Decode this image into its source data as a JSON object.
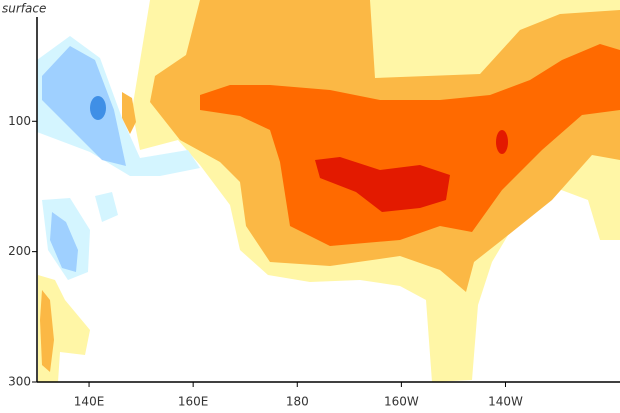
{
  "chart_data": {
    "type": "contour",
    "y_top_label": "surface",
    "xlim": [
      130,
      242
    ],
    "xticks": [
      {
        "value": 140,
        "label": "140E"
      },
      {
        "value": 160,
        "label": "160E"
      },
      180,
      {
        "value": 200,
        "label": "160W"
      },
      {
        "value": 220,
        "label": "140W"
      }
    ],
    "ylim": [
      300,
      20
    ],
    "yticks": [
      100,
      200,
      300
    ]
  }
}
